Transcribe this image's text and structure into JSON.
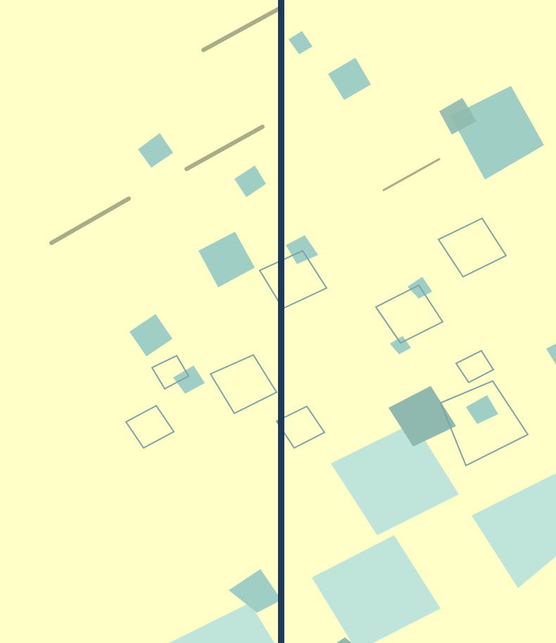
{
  "scene": {
    "background": "#ffffc8",
    "divider_color": "#1d3a5c",
    "solid_square_color": "#9fcfc4",
    "light_square_color": "#bfe5da",
    "dark_square_color": "#8fb9ae",
    "outline_color": "#7fa3a3",
    "stick_color": "#a9ad86"
  }
}
